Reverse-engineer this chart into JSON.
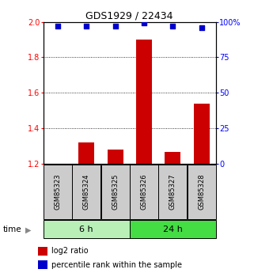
{
  "title": "GDS1929 / 22434",
  "samples": [
    "GSM85323",
    "GSM85324",
    "GSM85325",
    "GSM85326",
    "GSM85327",
    "GSM85328"
  ],
  "log2_ratio": [
    1.2,
    1.32,
    1.28,
    1.9,
    1.265,
    1.54
  ],
  "percentile_rank": [
    97,
    97,
    97,
    99,
    97,
    96
  ],
  "groups": [
    {
      "label": "6 h",
      "indices": [
        0,
        1,
        2
      ],
      "color": "#b8f0b8"
    },
    {
      "label": "24 h",
      "indices": [
        3,
        4,
        5
      ],
      "color": "#44dd44"
    }
  ],
  "ylim_left": [
    1.2,
    2.0
  ],
  "ylim_right": [
    0,
    100
  ],
  "yticks_left": [
    1.2,
    1.4,
    1.6,
    1.8,
    2.0
  ],
  "yticks_right": [
    0,
    25,
    50,
    75,
    100
  ],
  "bar_color": "#cc0000",
  "dot_color": "#0000cc",
  "bar_width": 0.55,
  "time_label": "time",
  "legend_ratio_label": "log2 ratio",
  "legend_pct_label": "percentile rank within the sample",
  "background_color": "#ffffff",
  "sample_box_color": "#cccccc",
  "sample_box_border": "#000000",
  "grid_yticks": [
    1.4,
    1.6,
    1.8
  ]
}
